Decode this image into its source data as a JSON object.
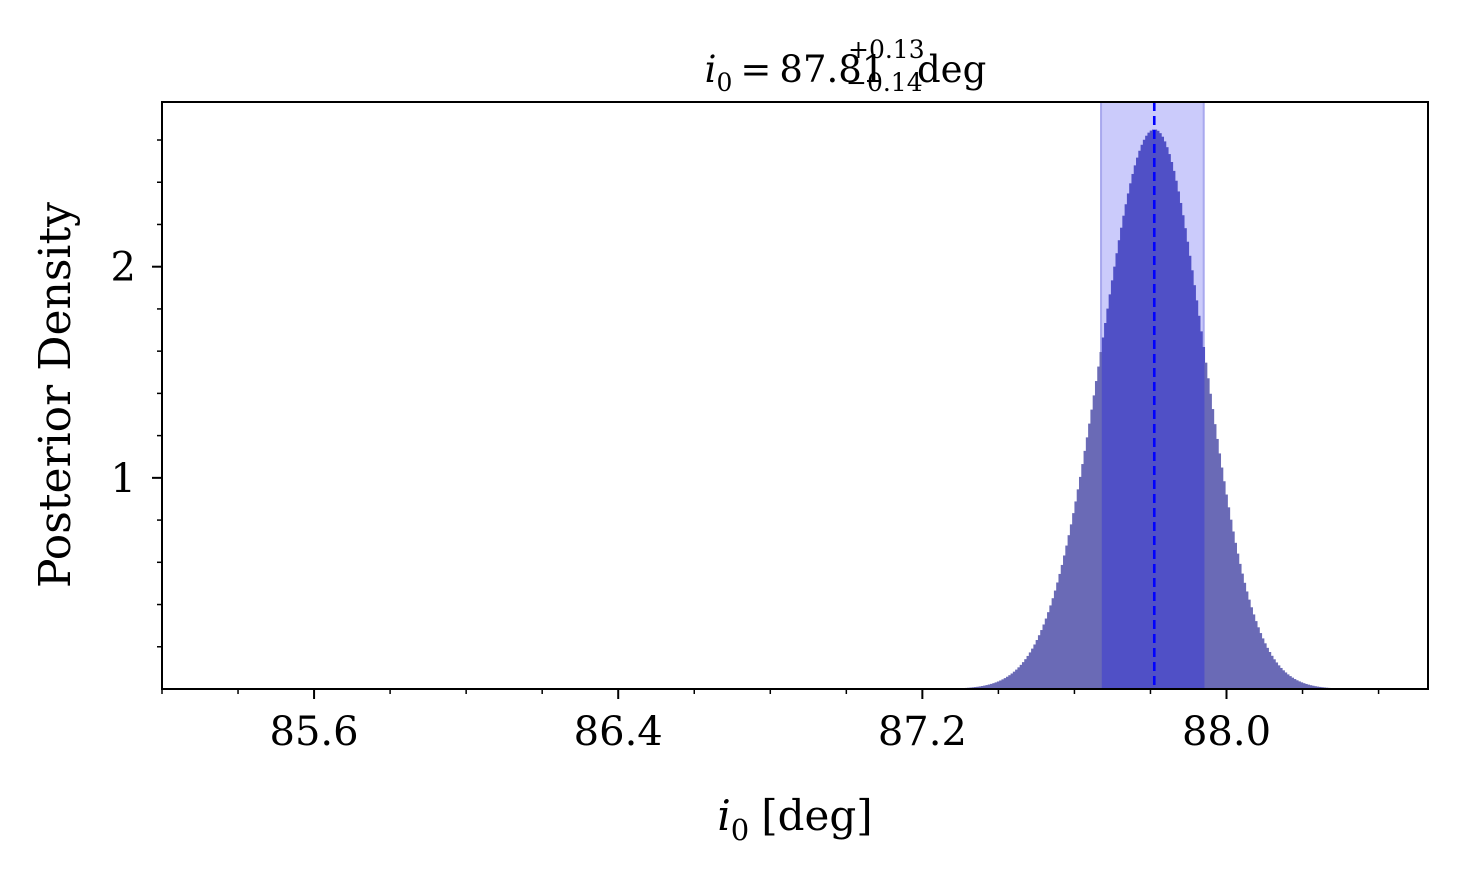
{
  "chart_data": {
    "type": "histogram",
    "title": {
      "symbol": "i",
      "subscript": "0",
      "equals": "=",
      "value": "87.81",
      "upper_error": "+0.13",
      "lower_error": "−0.14",
      "unit": "deg"
    },
    "xlabel": {
      "symbol": "i",
      "subscript": "0",
      "unit": "[deg]"
    },
    "ylabel": "Posterior Density",
    "xlim": [
      85.2,
      88.53
    ],
    "ylim": [
      0,
      2.78
    ],
    "xticks": [
      85.6,
      86.4,
      87.2,
      88.0
    ],
    "xtick_labels": [
      "85.6",
      "86.4",
      "87.2",
      "88.0"
    ],
    "xminor_step": 0.2,
    "yticks": [
      1,
      2
    ],
    "ytick_labels": [
      "1",
      "2"
    ],
    "yminor_step": 0.2,
    "distribution": {
      "median": 87.81,
      "sigma_lower": 0.14,
      "sigma_upper": 0.13,
      "peak_density": 2.65,
      "bin_width": 0.006,
      "range": [
        87.3,
        88.33
      ]
    },
    "credible_interval": [
      87.67,
      87.94
    ],
    "median_line": 87.81,
    "colors": {
      "histogram": "#6a6ab6",
      "histogram_in_band": "#5050c6",
      "band": "#cbcbfb",
      "median_line": "#0000ff",
      "axes": "#000000"
    },
    "grid": false,
    "legend": "none"
  }
}
